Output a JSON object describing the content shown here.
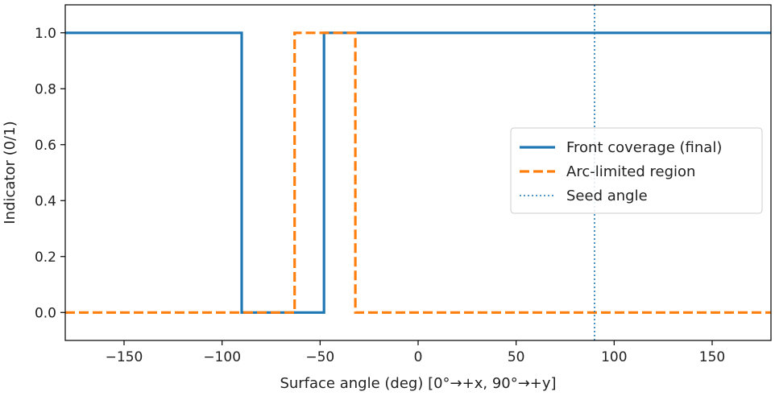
{
  "chart_data": {
    "type": "line",
    "xlabel": "Surface angle (deg)  [0°→+x, 90°→+y]",
    "ylabel": "Indicator (0/1)",
    "xlim": [
      -180,
      180
    ],
    "ylim": [
      -0.1,
      1.1
    ],
    "xticks": [
      -150,
      -100,
      -50,
      0,
      50,
      100,
      150
    ],
    "xtick_labels": [
      "−150",
      "−100",
      "−50",
      "0",
      "50",
      "100",
      "150"
    ],
    "yticks": [
      0.0,
      0.2,
      0.4,
      0.6,
      0.8,
      1.0
    ],
    "ytick_labels": [
      "0.0",
      "0.2",
      "0.4",
      "0.6",
      "0.8",
      "1.0"
    ],
    "grid": false,
    "legend_position": "center-right",
    "series": [
      {
        "name": "Front coverage (final)",
        "style": "solid",
        "color": "#1f77b4",
        "x": [
          -180,
          -90,
          -90,
          -48,
          -48,
          180
        ],
        "y": [
          1,
          1,
          0,
          0,
          1,
          1
        ]
      },
      {
        "name": "Arc-limited region",
        "style": "dashed",
        "color": "#ff7f0e",
        "x": [
          -180,
          -63,
          -63,
          -32,
          -32,
          180
        ],
        "y": [
          0,
          0,
          1,
          1,
          0,
          0
        ]
      },
      {
        "name": "Seed angle",
        "style": "dotted",
        "color": "#1f77b4",
        "vline_x": 90
      }
    ]
  }
}
